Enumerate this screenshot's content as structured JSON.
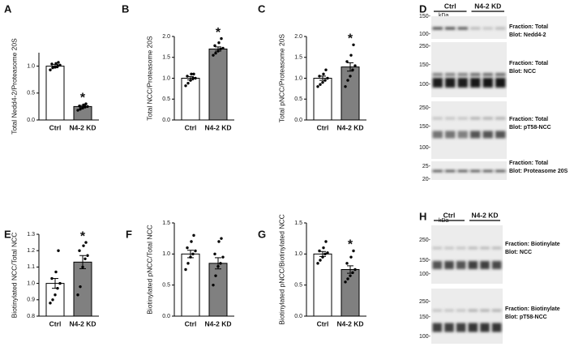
{
  "chart_data": [
    {
      "type": "bar",
      "panel": "A",
      "ylabel": "Total Nedd4-2/Proteasome 20S",
      "categories": [
        "Ctrl",
        "N4-2 KD"
      ],
      "values": [
        1,
        0.25
      ],
      "errors": [
        0.03,
        0.02
      ],
      "points": [
        [
          0.93,
          0.97,
          0.98,
          1.0,
          1.02,
          1.04,
          1.05,
          1.07
        ],
        [
          0.18,
          0.2,
          0.22,
          0.24,
          0.25,
          0.26,
          0.28,
          0.3
        ]
      ],
      "colors": [
        "#ffffff",
        "#808080"
      ],
      "annotation": "*",
      "ylim": [
        0,
        1.25
      ],
      "yticks": [
        {
          "value": 0,
          "label": "0.0"
        },
        0.5,
        {
          "value": 1,
          "label": "1.0"
        }
      ]
    },
    {
      "type": "bar",
      "panel": "B",
      "ylabel": "Total NCC/Proteasome 20S",
      "categories": [
        "Ctrl",
        "N4-2 KD"
      ],
      "values": [
        1,
        1.7
      ],
      "errors": [
        0.04,
        0.05
      ],
      "points": [
        [
          0.82,
          0.88,
          0.95,
          1.0,
          1.0,
          1.05,
          1.1,
          1.1
        ],
        [
          1.55,
          1.6,
          1.65,
          1.7,
          1.72,
          1.78,
          1.85,
          1.95
        ]
      ],
      "colors": [
        "#ffffff",
        "#808080"
      ],
      "annotation": "*",
      "ylim": [
        0,
        2
      ],
      "yticks": [
        {
          "value": 0,
          "label": "0.0"
        },
        0.5,
        {
          "value": 1,
          "label": "1.0"
        },
        1.5,
        {
          "value": 2,
          "label": "2.0"
        }
      ]
    },
    {
      "type": "bar",
      "panel": "C",
      "ylabel": "Total pNCC/Proteasome 20S",
      "categories": [
        "Ctrl",
        "N4-2 KD"
      ],
      "values": [
        1,
        1.27
      ],
      "errors": [
        0.05,
        0.1
      ],
      "points": [
        [
          0.8,
          0.85,
          0.9,
          0.95,
          1.0,
          1.05,
          1.1,
          1.2
        ],
        [
          0.8,
          0.95,
          1.05,
          1.2,
          1.3,
          1.4,
          1.55,
          1.8
        ]
      ],
      "colors": [
        "#ffffff",
        "#808080"
      ],
      "annotation": "*",
      "ylim": [
        0,
        2
      ],
      "yticks": [
        {
          "value": 0,
          "label": "0.0"
        },
        0.5,
        {
          "value": 1,
          "label": "1.0"
        },
        1.5,
        {
          "value": 2,
          "label": "2.0"
        }
      ]
    },
    {
      "type": "bar",
      "panel": "E",
      "ylabel": "Biotinylated NCC/Total NCC",
      "categories": [
        "Ctrl",
        "N4-2 KD"
      ],
      "values": [
        1,
        1.13
      ],
      "errors": [
        0.03,
        0.04
      ],
      "points": [
        [
          0.88,
          0.9,
          0.93,
          0.97,
          1.0,
          1.03,
          1.07,
          1.2
        ],
        [
          0.93,
          0.98,
          1.1,
          1.15,
          1.17,
          1.2,
          1.23,
          1.25
        ]
      ],
      "colors": [
        "#ffffff",
        "#808080"
      ],
      "annotation": "*",
      "ylim": [
        0.8,
        1.3
      ],
      "yticks": [
        0.8,
        0.9,
        {
          "value": 1,
          "label": "1.0"
        },
        1.1,
        1.2,
        1.3
      ]
    },
    {
      "type": "bar",
      "panel": "F",
      "ylabel": "Biotinylated pNCC/Total NCC",
      "categories": [
        "Ctrl",
        "N4-2 KD"
      ],
      "values": [
        1,
        0.85
      ],
      "errors": [
        0.06,
        0.09
      ],
      "points": [
        [
          0.75,
          0.85,
          0.95,
          1.0,
          1.05,
          1.1,
          1.2,
          1.3
        ],
        [
          0.5,
          0.65,
          0.8,
          0.85,
          0.95,
          1.0,
          1.2,
          1.25
        ]
      ],
      "colors": [
        "#ffffff",
        "#808080"
      ],
      "ylim": [
        0,
        1.5
      ],
      "yticks": [
        {
          "value": 0,
          "label": "0.0"
        },
        0.5,
        {
          "value": 1,
          "label": "1.0"
        },
        1.5
      ]
    },
    {
      "type": "bar",
      "panel": "G",
      "ylabel": "Biotinylated pNCC/Biotinylated NCC",
      "categories": [
        "Ctrl",
        "N4-2 KD"
      ],
      "values": [
        1,
        0.75
      ],
      "errors": [
        0.04,
        0.06
      ],
      "points": [
        [
          0.85,
          0.9,
          0.95,
          1.0,
          1.02,
          1.05,
          1.1,
          1.2
        ],
        [
          0.55,
          0.6,
          0.65,
          0.7,
          0.75,
          0.85,
          0.95,
          1.05
        ]
      ],
      "colors": [
        "#ffffff",
        "#808080"
      ],
      "annotation": "*",
      "ylim": [
        0,
        1.5
      ],
      "yticks": [
        {
          "value": 0,
          "label": "0.0"
        },
        0.5,
        {
          "value": 1,
          "label": "1.0"
        },
        1.5
      ]
    }
  ],
  "blots": [
    {
      "panel": "D",
      "unit": "kDa",
      "groups": [
        "Ctrl",
        "N4-2 KD"
      ],
      "sections": [
        {
          "markers": [
            "150-",
            "100-"
          ],
          "fraction": "Fraction: Total",
          "blot": "Blot: Nedd4-2"
        },
        {
          "markers": [
            "250-",
            "150-",
            "100-"
          ],
          "fraction": "Fraction: Total",
          "blot": "Blot: NCC"
        },
        {
          "markers": [
            "250-",
            "150-",
            "100-"
          ],
          "fraction": "Fraction: Total",
          "blot": "Blot: pT58-NCC"
        },
        {
          "markers": [
            "25-",
            "20-"
          ],
          "fraction": "Fraction: Total",
          "blot": "Blot: Proteasome 20S"
        }
      ]
    },
    {
      "panel": "H",
      "unit": "kDa",
      "groups": [
        "Ctrl",
        "N4-2 KD"
      ],
      "sections": [
        {
          "markers": [
            "250-",
            "150-",
            "100-"
          ],
          "fraction": "Fraction: Biotinylate",
          "blot": "Blot: NCC"
        },
        {
          "markers": [
            "250-",
            "150-",
            "100-"
          ],
          "fraction": "Fraction: Biotinylate",
          "blot": "Blot: pT58-NCC"
        }
      ]
    }
  ]
}
